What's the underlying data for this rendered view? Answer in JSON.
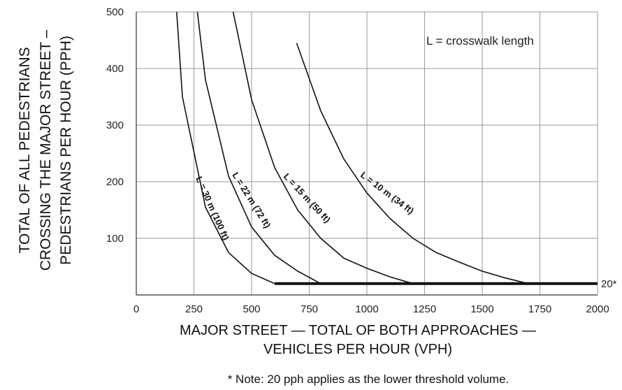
{
  "chart_data": {
    "type": "line",
    "title": "",
    "xlabel_lines": [
      "MAJOR STREET — TOTAL OF BOTH APPROACHES —",
      "VEHICLES PER HOUR (VPH)"
    ],
    "ylabel_lines": [
      "TOTAL OF ALL PEDESTRIANS",
      "CROSSING THE MAJOR STREET –",
      "PEDESTRIANS PER HOUR (PPH)"
    ],
    "xlim": [
      0,
      2000
    ],
    "ylim": [
      0,
      500
    ],
    "x_ticks": [
      0,
      250,
      500,
      750,
      1000,
      1250,
      1500,
      1750,
      2000
    ],
    "y_ticks": [
      100,
      200,
      300,
      400,
      500
    ],
    "x_tick_labels": [
      "0",
      "250",
      "500",
      "750",
      "1000",
      "1250",
      "1500",
      "1750",
      "2000"
    ],
    "y_tick_labels": [
      "100",
      "200",
      "300",
      "400",
      "500"
    ],
    "grid": true,
    "legend_text": "L = crosswalk length",
    "legend_placement": "top-right",
    "series": [
      {
        "name": "L = 30 m (100 ft)",
        "x": [
          175,
          200,
          300,
          400,
          500,
          600
        ],
        "y": [
          500,
          350,
          155,
          75,
          38,
          20
        ]
      },
      {
        "name": "L = 22 m (72 ft)",
        "x": [
          265,
          300,
          400,
          500,
          600,
          700,
          800
        ],
        "y": [
          500,
          380,
          210,
          120,
          70,
          42,
          20
        ]
      },
      {
        "name": "L = 15 m (50 ft)",
        "x": [
          420,
          500,
          600,
          700,
          800,
          900,
          1000,
          1100,
          1200
        ],
        "y": [
          500,
          345,
          225,
          150,
          100,
          65,
          47,
          32,
          20
        ]
      },
      {
        "name": "L = 10 m (34 ft)",
        "x": [
          695,
          800,
          900,
          1000,
          1100,
          1200,
          1300,
          1400,
          1500,
          1600,
          1700
        ],
        "y": [
          445,
          325,
          240,
          180,
          135,
          100,
          75,
          58,
          42,
          30,
          20
        ]
      }
    ],
    "threshold": {
      "y": 20,
      "x_start": 600,
      "x_end": 2000,
      "label": "20*"
    }
  },
  "note": "* Note: 20 pph applies as the lower threshold volume."
}
